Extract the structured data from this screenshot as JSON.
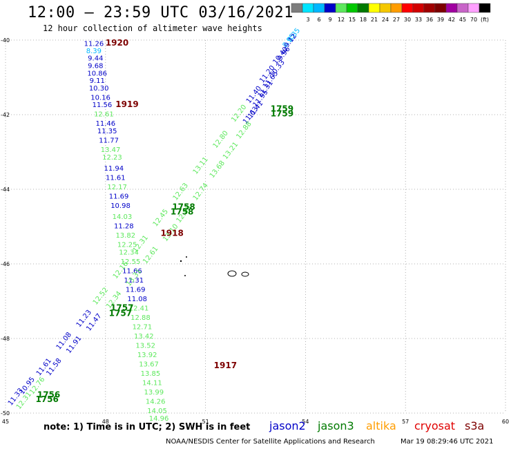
{
  "header": {
    "title": "12:00 — 23:59 UTC 03/16/2021",
    "subtitle": "12 hour collection of altimeter wave heights"
  },
  "units": "(ft)",
  "color_scale": [
    {
      "label": "",
      "color": "#7d7d7d"
    },
    {
      "label": "3",
      "color": "#00e5ff"
    },
    {
      "label": "6",
      "color": "#00b7ff"
    },
    {
      "label": "9",
      "color": "#0000c8"
    },
    {
      "label": "12",
      "color": "#5de85d"
    },
    {
      "label": "15",
      "color": "#00c800"
    },
    {
      "label": "18",
      "color": "#007a00"
    },
    {
      "label": "21",
      "color": "#ffff00"
    },
    {
      "label": "24",
      "color": "#f5c800"
    },
    {
      "label": "27",
      "color": "#ff9d00"
    },
    {
      "label": "30",
      "color": "#ff0000"
    },
    {
      "label": "33",
      "color": "#d20000"
    },
    {
      "label": "36",
      "color": "#a00000"
    },
    {
      "label": "39",
      "color": "#7d0000"
    },
    {
      "label": "42",
      "color": "#a000a0"
    },
    {
      "label": "45",
      "color": "#c864c8"
    },
    {
      "label": "70",
      "color": "#ffa0ff"
    },
    {
      "label": "",
      "color": "#000000"
    }
  ],
  "note": "note: 1) Time is in UTC; 2) SWH is in feet",
  "legend": [
    {
      "name": "jason2",
      "color": "#0000c8"
    },
    {
      "name": "jason3",
      "color": "#007a00"
    },
    {
      "name": "altika",
      "color": "#ff9d00"
    },
    {
      "name": "cryosat",
      "color": "#e00000"
    },
    {
      "name": "s3a",
      "color": "#7d0000"
    }
  ],
  "footer": {
    "credit": "NOAA/NESDIS Center for Satellite Applications and Research",
    "timestamp": "Mar 19 08:29:46 UTC 2021"
  },
  "chart_data": {
    "type": "scatter",
    "x_ticks": [
      "45",
      "48",
      "51",
      "54",
      "57",
      "60"
    ],
    "y_ticks": [
      "-40",
      "-42",
      "-44",
      "-46",
      "-48",
      "-50"
    ],
    "xlim": [
      45,
      60
    ],
    "ylim": [
      -50,
      -40
    ],
    "grid": true,
    "tracks": [
      {
        "name": "s3a",
        "color": "#7d0000",
        "points": [
          {
            "lon": 47.65,
            "lat": -40.16,
            "value": "11.26",
            "color": "#0000c8"
          },
          {
            "lon": 47.65,
            "lat": -40.35,
            "value": "8.39",
            "color": "#00b7ff"
          },
          {
            "lon": 47.7,
            "lat": -40.55,
            "value": "9.44",
            "color": "#0000c8"
          },
          {
            "lon": 47.7,
            "lat": -40.75,
            "value": "9.68",
            "color": "#0000c8"
          },
          {
            "lon": 47.75,
            "lat": -40.95,
            "value": "10.86",
            "color": "#0000c8"
          },
          {
            "lon": 47.75,
            "lat": -41.15,
            "value": "9.11",
            "color": "#0000c8"
          },
          {
            "lon": 47.8,
            "lat": -41.35,
            "value": "10.30",
            "color": "#0000c8"
          },
          {
            "lon": 47.85,
            "lat": -41.6,
            "value": "10.16",
            "color": "#0000c8"
          },
          {
            "lon": 47.9,
            "lat": -41.8,
            "value": "11.56",
            "color": "#0000c8"
          },
          {
            "lon": 47.95,
            "lat": -42.05,
            "value": "12.61",
            "color": "#5de85d"
          },
          {
            "lon": 48.0,
            "lat": -42.3,
            "value": "11.46",
            "color": "#0000c8"
          },
          {
            "lon": 48.05,
            "lat": -42.5,
            "value": "11.35",
            "color": "#0000c8"
          },
          {
            "lon": 48.1,
            "lat": -42.75,
            "value": "11.77",
            "color": "#0000c8"
          },
          {
            "lon": 48.15,
            "lat": -43.0,
            "value": "13.47",
            "color": "#5de85d"
          },
          {
            "lon": 48.2,
            "lat": -43.2,
            "value": "12.23",
            "color": "#5de85d"
          },
          {
            "lon": 48.25,
            "lat": -43.5,
            "value": "11.94",
            "color": "#0000c8"
          },
          {
            "lon": 48.3,
            "lat": -43.75,
            "value": "11.61",
            "color": "#0000c8"
          },
          {
            "lon": 48.35,
            "lat": -44.0,
            "value": "12.17",
            "color": "#5de85d"
          },
          {
            "lon": 48.4,
            "lat": -44.25,
            "value": "11.69",
            "color": "#0000c8"
          },
          {
            "lon": 48.45,
            "lat": -44.5,
            "value": "10.98",
            "color": "#0000c8"
          },
          {
            "lon": 48.5,
            "lat": -44.8,
            "value": "14.03",
            "color": "#5de85d"
          },
          {
            "lon": 48.55,
            "lat": -45.05,
            "value": "11.28",
            "color": "#0000c8"
          },
          {
            "lon": 48.6,
            "lat": -45.3,
            "value": "13.82",
            "color": "#5de85d"
          },
          {
            "lon": 48.65,
            "lat": -45.55,
            "value": "12.25",
            "color": "#5de85d"
          },
          {
            "lon": 48.7,
            "lat": -45.75,
            "value": "12.34",
            "color": "#5de85d"
          },
          {
            "lon": 48.75,
            "lat": -46.0,
            "value": "12.55",
            "color": "#5de85d"
          },
          {
            "lon": 48.8,
            "lat": -46.25,
            "value": "11.66",
            "color": "#0000c8"
          },
          {
            "lon": 48.85,
            "lat": -46.5,
            "value": "11.31",
            "color": "#0000c8"
          },
          {
            "lon": 48.9,
            "lat": -46.75,
            "value": "11.69",
            "color": "#0000c8"
          },
          {
            "lon": 48.95,
            "lat": -47.0,
            "value": "11.08",
            "color": "#0000c8"
          },
          {
            "lon": 49.0,
            "lat": -47.25,
            "value": "12.41",
            "color": "#5de85d"
          },
          {
            "lon": 49.05,
            "lat": -47.5,
            "value": "12.88",
            "color": "#5de85d"
          },
          {
            "lon": 49.1,
            "lat": -47.75,
            "value": "12.71",
            "color": "#5de85d"
          },
          {
            "lon": 49.15,
            "lat": -48.0,
            "value": "13.42",
            "color": "#5de85d"
          },
          {
            "lon": 49.2,
            "lat": -48.25,
            "value": "13.52",
            "color": "#5de85d"
          },
          {
            "lon": 49.25,
            "lat": -48.5,
            "value": "13.92",
            "color": "#5de85d"
          },
          {
            "lon": 49.3,
            "lat": -48.75,
            "value": "13.67",
            "color": "#5de85d"
          },
          {
            "lon": 49.35,
            "lat": -49.0,
            "value": "13.85",
            "color": "#5de85d"
          },
          {
            "lon": 49.4,
            "lat": -49.25,
            "value": "14.11",
            "color": "#5de85d"
          },
          {
            "lon": 49.45,
            "lat": -49.5,
            "value": "13.99",
            "color": "#5de85d"
          },
          {
            "lon": 49.5,
            "lat": -49.75,
            "value": "14.26",
            "color": "#5de85d"
          },
          {
            "lon": 49.55,
            "lat": -50.0,
            "value": "14.05",
            "color": "#5de85d"
          },
          {
            "lon": 49.6,
            "lat": -50.2,
            "value": "14.96",
            "color": "#5de85d"
          }
        ]
      },
      {
        "name": "jason3",
        "color": "#007a00",
        "points": [
          {
            "lon": 53.7,
            "lat": -39.9,
            "value": "8.35",
            "color": "#00b7ff"
          },
          {
            "lon": 53.55,
            "lat": -40.05,
            "value": "8.95",
            "color": "#00b7ff"
          },
          {
            "lon": 53.4,
            "lat": -40.4,
            "value": "9.96",
            "color": "#0000c8"
          },
          {
            "lon": 53.2,
            "lat": -40.8,
            "value": "10.33",
            "color": "#0000c8"
          },
          {
            "lon": 53.0,
            "lat": -41.1,
            "value": "11.65",
            "color": "#0000c8"
          },
          {
            "lon": 52.85,
            "lat": -41.35,
            "value": "11.31",
            "color": "#0000c8"
          },
          {
            "lon": 52.7,
            "lat": -41.6,
            "value": "11.95",
            "color": "#0000c8"
          },
          {
            "lon": 52.55,
            "lat": -41.9,
            "value": "11.41",
            "color": "#0000c8"
          },
          {
            "lon": 52.4,
            "lat": -42.05,
            "value": "11.63",
            "color": "#0000c8"
          },
          {
            "lon": 52.2,
            "lat": -42.45,
            "value": "12.88",
            "color": "#5de85d"
          },
          {
            "lon": 51.8,
            "lat": -43.0,
            "value": "13.21",
            "color": "#5de85d"
          },
          {
            "lon": 51.4,
            "lat": -43.5,
            "value": "13.68",
            "color": "#5de85d"
          },
          {
            "lon": 50.9,
            "lat": -44.1,
            "value": "12.74",
            "color": "#5de85d"
          },
          {
            "lon": 50.4,
            "lat": -44.7,
            "value": "12.95",
            "color": "#5de85d"
          },
          {
            "lon": 50.0,
            "lat": -45.2,
            "value": "13.10",
            "color": "#5de85d"
          },
          {
            "lon": 49.4,
            "lat": -45.8,
            "value": "12.61",
            "color": "#5de85d"
          },
          {
            "lon": 48.9,
            "lat": -46.4,
            "value": "13.31",
            "color": "#5de85d"
          },
          {
            "lon": 48.3,
            "lat": -47.0,
            "value": "12.34",
            "color": "#5de85d"
          },
          {
            "lon": 47.7,
            "lat": -47.6,
            "value": "11.47",
            "color": "#0000c8"
          },
          {
            "lon": 47.1,
            "lat": -48.2,
            "value": "11.91",
            "color": "#0000c8"
          },
          {
            "lon": 46.5,
            "lat": -48.8,
            "value": "11.58",
            "color": "#0000c8"
          },
          {
            "lon": 46.0,
            "lat": -49.3,
            "value": "12.76",
            "color": "#5de85d"
          },
          {
            "lon": 45.6,
            "lat": -49.7,
            "value": "12.31",
            "color": "#5de85d"
          }
        ]
      },
      {
        "name": "jason2",
        "color": "#0000c8",
        "points": [
          {
            "lon": 53.6,
            "lat": -40.05,
            "value": "9.12",
            "color": "#0000c8"
          },
          {
            "lon": 53.3,
            "lat": -40.45,
            "value": "10.40",
            "color": "#0000c8"
          },
          {
            "lon": 52.9,
            "lat": -40.95,
            "value": "11.20",
            "color": "#0000c8"
          },
          {
            "lon": 52.5,
            "lat": -41.5,
            "value": "11.40",
            "color": "#0000c8"
          },
          {
            "lon": 52.05,
            "lat": -42.0,
            "value": "12.20",
            "color": "#5de85d"
          },
          {
            "lon": 51.5,
            "lat": -42.7,
            "value": "12.80",
            "color": "#5de85d"
          },
          {
            "lon": 50.9,
            "lat": -43.4,
            "value": "13.11",
            "color": "#5de85d"
          },
          {
            "lon": 50.3,
            "lat": -44.1,
            "value": "12.63",
            "color": "#5de85d"
          },
          {
            "lon": 49.7,
            "lat": -44.8,
            "value": "12.45",
            "color": "#5de85d"
          },
          {
            "lon": 49.1,
            "lat": -45.5,
            "value": "12.31",
            "color": "#5de85d"
          },
          {
            "lon": 48.5,
            "lat": -46.2,
            "value": "12.16",
            "color": "#5de85d"
          },
          {
            "lon": 47.9,
            "lat": -46.9,
            "value": "12.52",
            "color": "#5de85d"
          },
          {
            "lon": 47.4,
            "lat": -47.5,
            "value": "11.23",
            "color": "#0000c8"
          },
          {
            "lon": 46.8,
            "lat": -48.1,
            "value": "11.08",
            "color": "#0000c8"
          },
          {
            "lon": 46.2,
            "lat": -48.8,
            "value": "11.61",
            "color": "#0000c8"
          },
          {
            "lon": 45.7,
            "lat": -49.3,
            "value": "10.95",
            "color": "#0000c8"
          },
          {
            "lon": 45.35,
            "lat": -49.6,
            "value": "11.33",
            "color": "#0000c8"
          }
        ]
      }
    ],
    "time_labels": [
      {
        "text": "1920",
        "lon": 48.0,
        "lat": -40.15,
        "color": "#7d0000"
      },
      {
        "text": "1919",
        "lon": 48.3,
        "lat": -41.8,
        "color": "#7d0000"
      },
      {
        "text": "1918",
        "lon": 49.65,
        "lat": -45.25,
        "color": "#7d0000"
      },
      {
        "text": "1917",
        "lon": 51.25,
        "lat": -48.8,
        "color": "#7d0000"
      },
      {
        "text": "1759",
        "lon": 52.95,
        "lat": -41.92,
        "color": "#007a00"
      },
      {
        "text": "1759",
        "lon": 52.95,
        "lat": -42.05,
        "color": "#007a00"
      },
      {
        "text": "1758",
        "lon": 50.0,
        "lat": -44.55,
        "color": "#007a00"
      },
      {
        "text": "1758",
        "lon": 49.95,
        "lat": -44.68,
        "color": "#007a00"
      },
      {
        "text": "1757",
        "lon": 48.15,
        "lat": -47.25,
        "color": "#007a00"
      },
      {
        "text": "1757",
        "lon": 48.1,
        "lat": -47.4,
        "color": "#007a00"
      },
      {
        "text": "1756",
        "lon": 45.95,
        "lat": -49.58,
        "color": "#007a00"
      },
      {
        "text": "1756",
        "lon": 45.9,
        "lat": -49.7,
        "color": "#007a00"
      }
    ]
  }
}
